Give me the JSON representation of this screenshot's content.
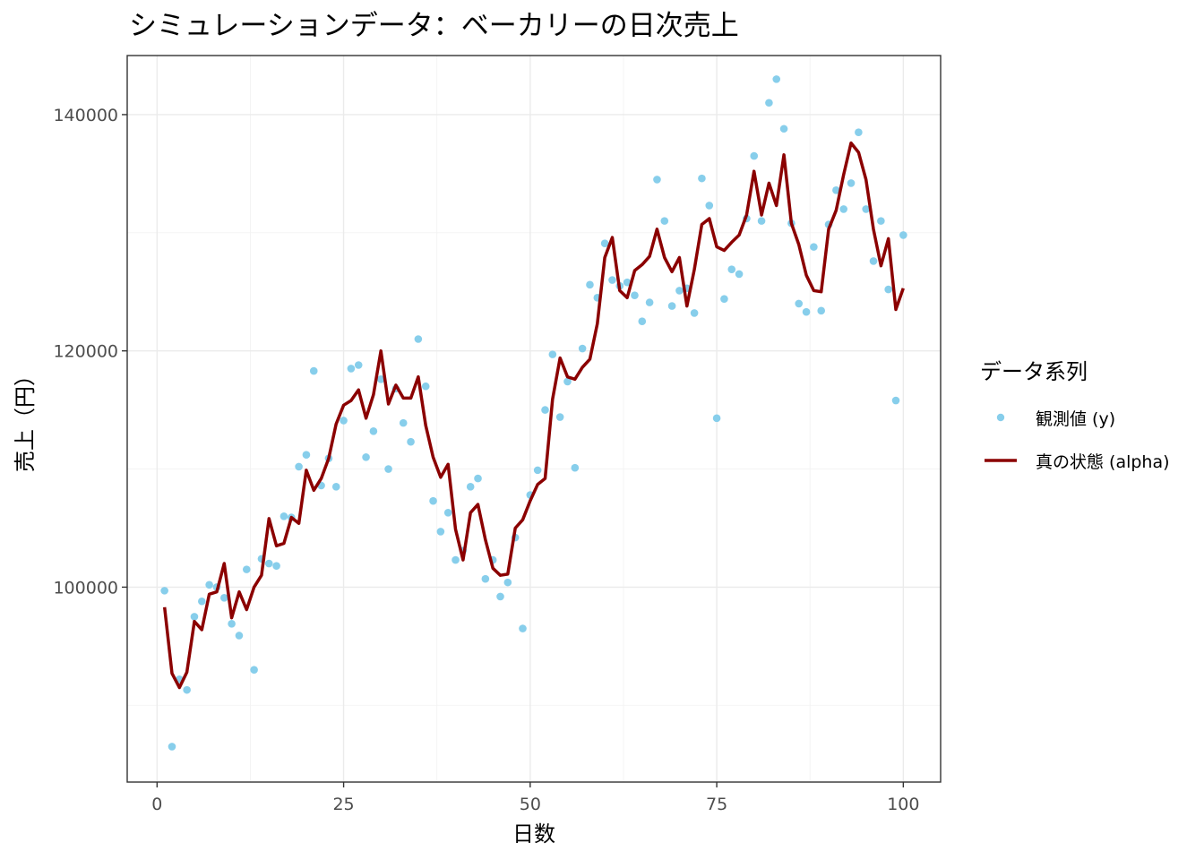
{
  "chart_data": {
    "type": "line",
    "title": "シミュレーションデータ：ベーカリーの日次売上",
    "xlabel": "日数",
    "ylabel": "売上（円）",
    "xlim": [
      -4,
      105
    ],
    "ylim": [
      83500,
      145000
    ],
    "x_ticks": [
      0,
      25,
      50,
      75,
      100
    ],
    "y_ticks": [
      100000,
      120000,
      140000
    ],
    "x_tick_labels": [
      "0",
      "25",
      "50",
      "75",
      "100"
    ],
    "y_tick_labels": [
      "100000",
      "120000",
      "140000"
    ],
    "grid": true,
    "legend": {
      "title": "データ系列",
      "position": "right",
      "entries": [
        {
          "label": "観測値 (y)",
          "kind": "point",
          "color": "#87ceeb"
        },
        {
          "label": "真の状態 (alpha)",
          "kind": "line",
          "color": "#8b0000"
        }
      ]
    },
    "x": [
      1,
      2,
      3,
      4,
      5,
      6,
      7,
      8,
      9,
      10,
      11,
      12,
      13,
      14,
      15,
      16,
      17,
      18,
      19,
      20,
      21,
      22,
      23,
      24,
      25,
      26,
      27,
      28,
      29,
      30,
      31,
      32,
      33,
      34,
      35,
      36,
      37,
      38,
      39,
      40,
      41,
      42,
      43,
      44,
      45,
      46,
      47,
      48,
      49,
      50,
      51,
      52,
      53,
      54,
      55,
      56,
      57,
      58,
      59,
      60,
      61,
      62,
      63,
      64,
      65,
      66,
      67,
      68,
      69,
      70,
      71,
      72,
      73,
      74,
      75,
      76,
      77,
      78,
      79,
      80,
      81,
      82,
      83,
      84,
      85,
      86,
      87,
      88,
      89,
      90,
      91,
      92,
      93,
      94,
      95,
      96,
      97,
      98,
      99,
      100
    ],
    "series": [
      {
        "name": "観測値 (y)",
        "type": "scatter",
        "color": "#87ceeb",
        "values": [
          99700,
          86500,
          92200,
          91300,
          97500,
          98800,
          100200,
          100000,
          99100,
          96900,
          95900,
          101500,
          93000,
          102400,
          102000,
          101800,
          106000,
          105900,
          110200,
          111200,
          118300,
          108600,
          110900,
          108500,
          114100,
          118500,
          118800,
          111000,
          113200,
          117600,
          110000,
          116800,
          113900,
          112300,
          121000,
          117000,
          107300,
          104700,
          106300,
          102300,
          103100,
          108500,
          109200,
          100700,
          102300,
          99200,
          100400,
          104200,
          96500,
          107800,
          109900,
          115000,
          119700,
          114400,
          117400,
          110100,
          120200,
          125600,
          124500,
          129100,
          126000,
          125500,
          125800,
          124700,
          122500,
          124100,
          134500,
          131000,
          123800,
          125100,
          125300,
          123200,
          134600,
          132300,
          114300,
          124400,
          126900,
          126500,
          131200,
          136500,
          131000,
          141000,
          143000,
          138800,
          130800,
          124000,
          123300,
          128800,
          123400,
          130700,
          133600,
          132000,
          134200,
          138500,
          132000,
          127600,
          131000,
          125200,
          115800,
          129800
        ]
      },
      {
        "name": "真の状態 (alpha)",
        "type": "line",
        "color": "#8b0000",
        "values": [
          98300,
          92700,
          91500,
          92800,
          97100,
          96400,
          99400,
          99600,
          102000,
          97400,
          99600,
          98100,
          100000,
          101000,
          105800,
          103500,
          103700,
          105900,
          105400,
          109900,
          108200,
          109200,
          110900,
          113800,
          115400,
          115800,
          116700,
          114300,
          116300,
          120000,
          115500,
          117100,
          116000,
          116000,
          117800,
          113700,
          111000,
          109300,
          110400,
          104900,
          102300,
          106300,
          107000,
          104000,
          101600,
          101000,
          101100,
          105000,
          105700,
          107300,
          108700,
          109200,
          115900,
          119400,
          117800,
          117600,
          118600,
          119300,
          122300,
          127900,
          129600,
          125100,
          124500,
          126800,
          127300,
          128000,
          130300,
          127900,
          126700,
          127900,
          123800,
          126900,
          130700,
          131200,
          128800,
          128500,
          129200,
          129800,
          131500,
          135200,
          131500,
          134200,
          132300,
          136600,
          130800,
          129000,
          126400,
          125100,
          125000,
          130300,
          131900,
          134900,
          137600,
          136800,
          134500,
          130300,
          127200,
          129500,
          123500,
          125300
        ]
      }
    ]
  }
}
